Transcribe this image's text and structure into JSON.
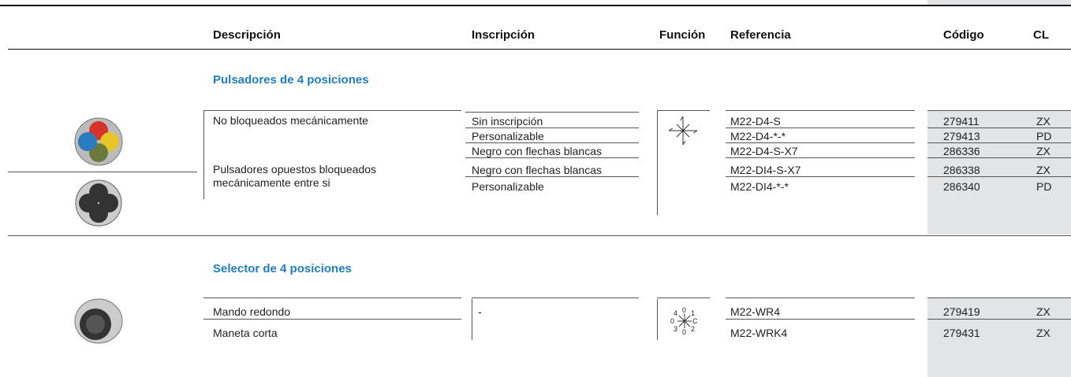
{
  "header": {
    "columns": [
      "Descripción",
      "Inscripción",
      "Función",
      "Referencia",
      "Código",
      "CL"
    ]
  },
  "sections": [
    {
      "title": "Pulsadores de 4 posiciones",
      "groups": [
        {
          "description": "No bloqueados mecánicamente",
          "rows": [
            {
              "inscription": "Sin inscripción",
              "reference": "M22-D4-S",
              "code": "279411",
              "cl": "ZX"
            },
            {
              "inscription": "Personalizable",
              "reference": "M22-D4-*-*",
              "code": "279413",
              "cl": "PD"
            },
            {
              "inscription": "Negro con flechas blancas",
              "reference": "M22-D4-S-X7",
              "code": "286336",
              "cl": "ZX"
            }
          ]
        },
        {
          "description": "Pulsadores opuestos bloqueados mecánicamente entre si",
          "rows": [
            {
              "inscription": "Negro con flechas blancas",
              "reference": "M22-DI4-S-X7",
              "code": "286338",
              "cl": "ZX"
            },
            {
              "inscription": "Personalizable",
              "reference": "M22-DI4-*-*",
              "code": "286340",
              "cl": "PD"
            }
          ]
        }
      ]
    },
    {
      "title": "Selector de 4 posiciones",
      "inscription": "-",
      "function_labels": [
        "4",
        "0",
        "1",
        "0",
        "C",
        "3",
        "0",
        "2"
      ],
      "rows": [
        {
          "description": "Mando redondo",
          "reference": "M22-WR4",
          "code": "279419",
          "cl": "ZX"
        },
        {
          "description": "Maneta corta",
          "reference": "M22-WRK4",
          "code": "279431",
          "cl": "ZX"
        }
      ]
    }
  ]
}
